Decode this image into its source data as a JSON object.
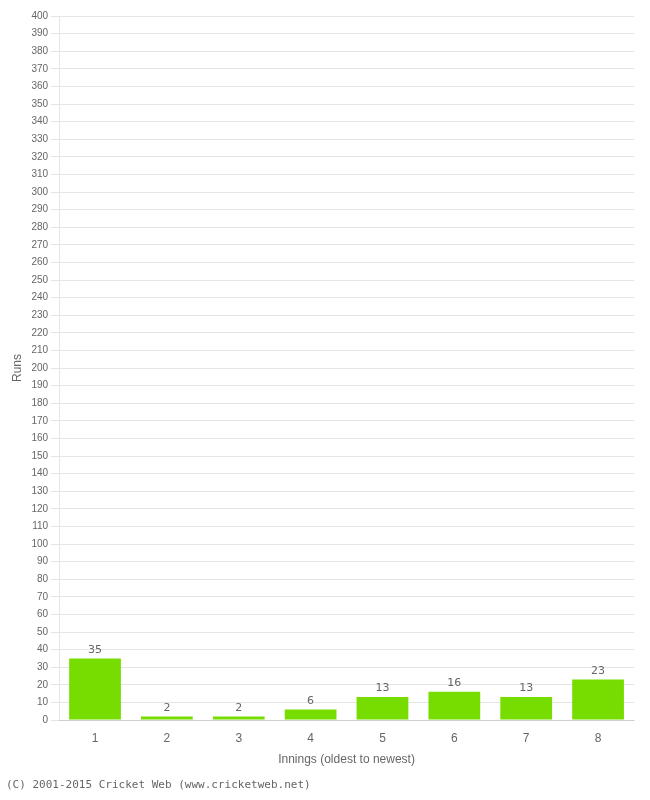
{
  "chart_data": {
    "type": "bar",
    "categories": [
      1,
      2,
      3,
      4,
      5,
      6,
      7,
      8
    ],
    "values": [
      35,
      2,
      2,
      6,
      13,
      16,
      13,
      23
    ],
    "color": "#77dd00",
    "xlabel": "Innings (oldest to newest)",
    "ylabel": "Runs",
    "ylim": [
      0,
      400
    ],
    "yticks": [
      0,
      10,
      20,
      30,
      40,
      50,
      60,
      70,
      80,
      90,
      100,
      110,
      120,
      130,
      140,
      150,
      160,
      170,
      180,
      190,
      200,
      210,
      220,
      230,
      240,
      250,
      260,
      270,
      280,
      290,
      300,
      310,
      320,
      330,
      340,
      350,
      360,
      370,
      380,
      390,
      400
    ],
    "grid": true,
    "data_labels": true,
    "annotations": [
      "(C) 2001-2015 Cricket Web (www.cricketweb.net)"
    ]
  }
}
